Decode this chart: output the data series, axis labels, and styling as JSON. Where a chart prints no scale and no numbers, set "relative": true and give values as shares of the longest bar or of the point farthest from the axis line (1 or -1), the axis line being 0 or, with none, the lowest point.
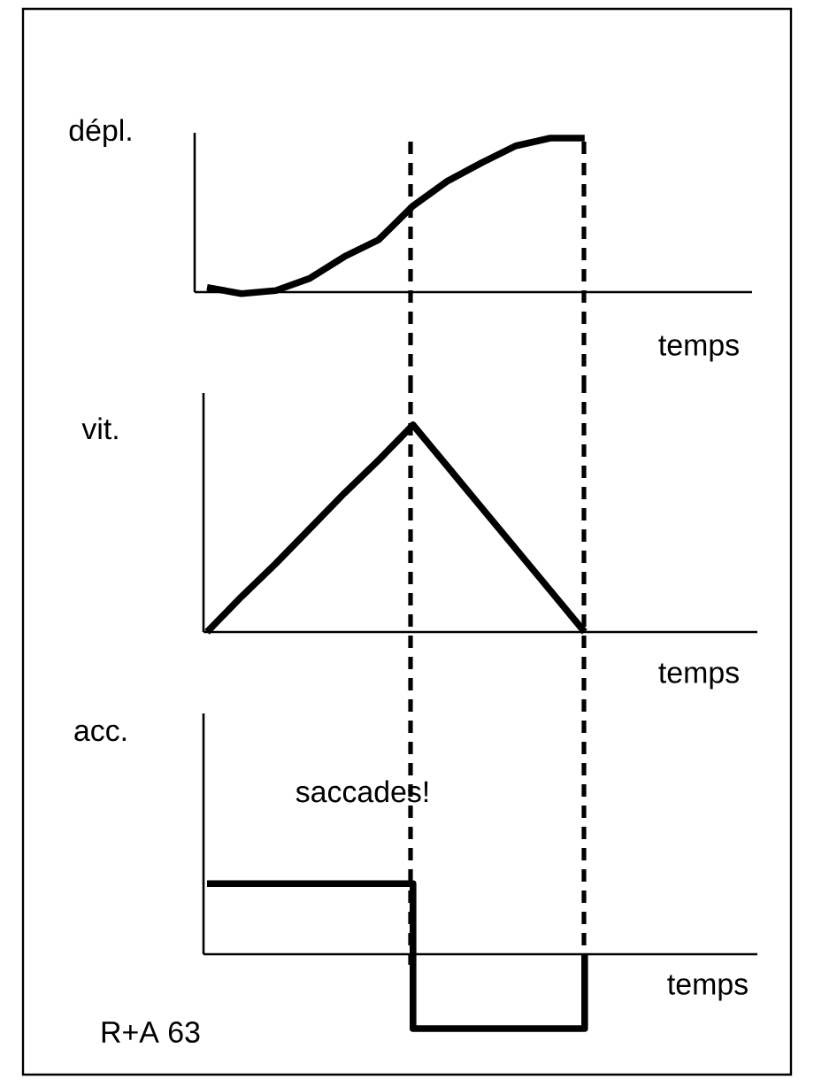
{
  "chart_data": [
    {
      "type": "line",
      "relative": true,
      "ylabel": "dépl.",
      "xlabel": "temps",
      "categories": [
        null,
        null,
        null,
        null,
        null,
        null,
        null,
        null,
        null,
        null,
        null,
        null,
        null,
        null,
        null,
        null
      ],
      "series": [
        {
          "color": "#000000",
          "values": [
            0.03,
            -0.01,
            0.01,
            0.09,
            0.23,
            0.34,
            0.56,
            0.72,
            0.84,
            0.95,
            1,
            1,
            null,
            null,
            null,
            null
          ]
        }
      ]
    },
    {
      "type": "line",
      "relative": true,
      "ylabel": "vit.",
      "xlabel": "temps",
      "categories": [
        null,
        null,
        null,
        null,
        null,
        null,
        null,
        null,
        null,
        null,
        null,
        null,
        null,
        null,
        null,
        null
      ],
      "series": [
        {
          "color": "#000000",
          "values": [
            0,
            0.17,
            0.33,
            0.5,
            0.67,
            0.83,
            1,
            0.8,
            0.6,
            0.4,
            0.2,
            0,
            null,
            null,
            null,
            null
          ]
        }
      ]
    },
    {
      "type": "step",
      "relative": true,
      "ylabel": "acc.",
      "xlabel": "temps",
      "categories": [
        null,
        null,
        null,
        null,
        null,
        null,
        null,
        null,
        null,
        null,
        null,
        null,
        null,
        null,
        null,
        null
      ],
      "series": [
        {
          "color": "#000000",
          "values": [
            0.95,
            0.95,
            0.95,
            0.95,
            0.95,
            0.95,
            -1,
            -1,
            -1,
            -1,
            -1,
            0,
            null,
            null,
            null,
            null
          ]
        }
      ],
      "annotations": [
        "saccades!",
        "R+A 63"
      ]
    }
  ]
}
